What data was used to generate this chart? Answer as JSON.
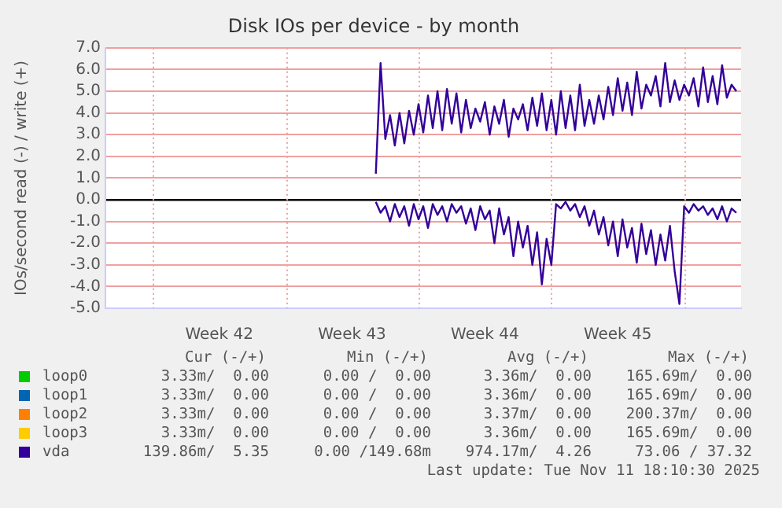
{
  "chart_data": {
    "type": "line",
    "title": "Disk IOs per device - by month",
    "ylabel": "IOs/second read (-) / write (+)",
    "categories": [
      null,
      null,
      null,
      null,
      null,
      null,
      null,
      null,
      null,
      null,
      null,
      null,
      null,
      null,
      null,
      null,
      null,
      null,
      null,
      null,
      null,
      null,
      null,
      null,
      "Week 42",
      null,
      null,
      null,
      null,
      null,
      null,
      null,
      null,
      null,
      null,
      null,
      null,
      null,
      null,
      null,
      null,
      null,
      null,
      null,
      null,
      null,
      null,
      null,
      null,
      null,
      null,
      null,
      "Week 43",
      null,
      null,
      null,
      null,
      null,
      null,
      null,
      null,
      null,
      null,
      null,
      null,
      null,
      null,
      null,
      null,
      null,
      null,
      null,
      null,
      null,
      null,
      null,
      null,
      null,
      null,
      null,
      "Week 44",
      null,
      null,
      null,
      null,
      null,
      null,
      null,
      null,
      null,
      null,
      null,
      null,
      null,
      null,
      null,
      null,
      null,
      null,
      null,
      null,
      null,
      null,
      null,
      null,
      null,
      null,
      null,
      "Week 45",
      null,
      null,
      null,
      null,
      null,
      null,
      null,
      null,
      null,
      null,
      null,
      null,
      null,
      null,
      null,
      null,
      null,
      null,
      null,
      null,
      null,
      null,
      null,
      null,
      null,
      null
    ],
    "ylim": [
      -5,
      7
    ],
    "yticks": [
      {
        "value": -5,
        "label": "-5.0"
      },
      {
        "value": -4,
        "label": "-4.0"
      },
      {
        "value": -3,
        "label": "-3.0"
      },
      {
        "value": -2,
        "label": "-2.0"
      },
      {
        "value": -1,
        "label": "-1.0"
      },
      {
        "value": 0,
        "label": "0.0"
      },
      {
        "value": 1,
        "label": "1.0"
      },
      {
        "value": 2,
        "label": "2.0"
      },
      {
        "value": 3,
        "label": "3.0"
      },
      {
        "value": 4,
        "label": "4.0"
      },
      {
        "value": 5,
        "label": "5.0"
      },
      {
        "value": 6,
        "label": "6.0"
      },
      {
        "value": 7,
        "label": "7.0"
      }
    ],
    "series": [
      {
        "name": "loop0",
        "color": "#00cc00",
        "values": [
          null,
          null,
          null,
          null,
          null,
          null,
          null,
          null,
          null,
          null,
          null,
          null,
          null,
          null,
          null,
          null,
          null,
          null,
          null,
          null,
          null,
          null,
          null,
          null,
          null,
          null,
          null,
          null,
          null,
          null,
          null,
          null,
          null,
          null,
          null,
          null,
          null,
          null,
          null,
          null,
          null,
          null,
          null,
          null,
          null,
          null,
          null,
          null,
          null,
          null,
          null,
          null,
          null,
          null,
          null,
          null,
          null,
          null,
          null,
          null,
          null,
          null,
          null,
          null,
          null,
          null,
          null,
          null,
          null,
          null,
          null,
          null,
          null,
          null,
          null,
          null,
          null,
          null,
          null,
          null,
          null,
          null,
          null,
          null,
          null,
          null,
          null,
          null,
          null,
          null,
          null,
          null,
          null,
          null,
          null,
          null,
          null,
          null,
          null,
          null,
          null,
          null,
          null,
          null,
          null,
          null,
          null,
          null,
          null,
          null,
          null,
          null,
          null,
          null,
          null,
          null,
          null,
          null,
          null,
          null,
          null,
          null,
          null,
          null,
          null,
          null,
          null,
          null,
          null,
          null,
          null,
          null,
          null,
          null,
          null
        ]
      },
      {
        "name": "loop1",
        "color": "#0066b3",
        "values": [
          null,
          null,
          null,
          null,
          null,
          null,
          null,
          null,
          null,
          null,
          null,
          null,
          null,
          null,
          null,
          null,
          null,
          null,
          null,
          null,
          null,
          null,
          null,
          null,
          null,
          null,
          null,
          null,
          null,
          null,
          null,
          null,
          null,
          null,
          null,
          null,
          null,
          null,
          null,
          null,
          null,
          null,
          null,
          null,
          null,
          null,
          null,
          null,
          null,
          null,
          null,
          null,
          null,
          null,
          null,
          null,
          null,
          null,
          null,
          null,
          null,
          null,
          null,
          null,
          null,
          null,
          null,
          null,
          null,
          null,
          null,
          null,
          null,
          null,
          null,
          null,
          null,
          null,
          null,
          null,
          null,
          null,
          null,
          null,
          null,
          null,
          null,
          null,
          null,
          null,
          null,
          null,
          null,
          null,
          null,
          null,
          null,
          null,
          null,
          null,
          null,
          null,
          null,
          null,
          null,
          null,
          null,
          null,
          null,
          null,
          null,
          null,
          null,
          null,
          null,
          null,
          null,
          null,
          null,
          null,
          null,
          null,
          null,
          null,
          null,
          null,
          null,
          null,
          null,
          null,
          null,
          null,
          null,
          null,
          null
        ]
      },
      {
        "name": "loop2",
        "color": "#ff8000",
        "values": [
          null,
          null,
          null,
          null,
          null,
          null,
          null,
          null,
          null,
          null,
          null,
          null,
          null,
          null,
          null,
          null,
          null,
          null,
          null,
          null,
          null,
          null,
          null,
          null,
          null,
          null,
          null,
          null,
          null,
          null,
          null,
          null,
          null,
          null,
          null,
          null,
          null,
          null,
          null,
          null,
          null,
          null,
          null,
          null,
          null,
          null,
          null,
          null,
          null,
          null,
          null,
          null,
          null,
          null,
          null,
          null,
          null,
          null,
          null,
          null,
          null,
          null,
          null,
          null,
          null,
          null,
          null,
          null,
          null,
          null,
          null,
          null,
          null,
          null,
          null,
          null,
          null,
          null,
          null,
          null,
          null,
          null,
          null,
          null,
          null,
          null,
          null,
          null,
          null,
          null,
          null,
          null,
          null,
          null,
          null,
          null,
          null,
          null,
          null,
          null,
          null,
          null,
          null,
          null,
          null,
          null,
          null,
          null,
          null,
          null,
          null,
          null,
          null,
          null,
          null,
          null,
          null,
          null,
          null,
          null,
          null,
          null,
          null,
          null,
          null,
          null,
          null,
          null,
          null,
          null,
          null,
          null,
          null,
          null,
          null
        ]
      },
      {
        "name": "loop3",
        "color": "#ffcc00",
        "values": [
          null,
          null,
          null,
          null,
          null,
          null,
          null,
          null,
          null,
          null,
          null,
          null,
          null,
          null,
          null,
          null,
          null,
          null,
          null,
          null,
          null,
          null,
          null,
          null,
          null,
          null,
          null,
          null,
          null,
          null,
          null,
          null,
          null,
          null,
          null,
          null,
          null,
          null,
          null,
          null,
          null,
          null,
          null,
          null,
          null,
          null,
          null,
          null,
          null,
          null,
          null,
          null,
          null,
          null,
          null,
          null,
          null,
          null,
          null,
          null,
          null,
          null,
          null,
          null,
          null,
          null,
          null,
          null,
          null,
          null,
          null,
          null,
          null,
          null,
          null,
          null,
          null,
          null,
          null,
          null,
          null,
          null,
          null,
          null,
          null,
          null,
          null,
          null,
          null,
          null,
          null,
          null,
          null,
          null,
          null,
          null,
          null,
          null,
          null,
          null,
          null,
          null,
          null,
          null,
          null,
          null,
          null,
          null,
          null,
          null,
          null,
          null,
          null,
          null,
          null,
          null,
          null,
          null,
          null,
          null,
          null,
          null,
          null,
          null,
          null,
          null,
          null,
          null,
          null,
          null,
          null,
          null,
          null,
          null,
          null
        ]
      },
      {
        "name": "vda",
        "color": "#330099",
        "values": [
          null,
          null,
          null,
          null,
          null,
          null,
          null,
          null,
          null,
          null,
          null,
          null,
          null,
          null,
          null,
          null,
          null,
          null,
          null,
          null,
          null,
          null,
          null,
          null,
          null,
          null,
          null,
          null,
          null,
          null,
          null,
          null,
          null,
          null,
          null,
          null,
          null,
          null,
          null,
          null,
          null,
          null,
          null,
          null,
          null,
          null,
          null,
          null,
          null,
          null,
          null,
          null,
          null,
          null,
          null,
          null,
          null,
          1.2,
          6.3,
          2.8,
          3.9,
          2.5,
          4.0,
          2.6,
          4.1,
          3.0,
          4.4,
          3.1,
          4.8,
          3.3,
          5.0,
          3.2,
          5.1,
          3.5,
          4.9,
          3.1,
          4.6,
          3.3,
          4.2,
          3.6,
          4.5,
          3.0,
          4.3,
          3.5,
          4.6,
          2.9,
          4.2,
          3.7,
          4.4,
          3.2,
          4.7,
          3.4,
          4.9,
          3.2,
          4.6,
          3.0,
          5.0,
          3.3,
          4.8,
          3.2,
          5.3,
          3.4,
          4.6,
          3.5,
          4.8,
          3.7,
          5.2,
          3.9,
          5.6,
          4.1,
          5.4,
          3.9,
          5.9,
          4.2,
          5.3,
          4.8,
          5.7,
          4.3,
          6.3,
          4.5,
          5.5,
          4.6,
          5.3,
          4.8,
          5.6,
          4.3,
          6.1,
          4.5,
          5.7,
          4.4,
          6.2,
          4.7,
          5.3,
          5.0,
          null
        ]
      },
      {
        "color": "#330099",
        "values": [
          null,
          null,
          null,
          null,
          null,
          null,
          null,
          null,
          null,
          null,
          null,
          null,
          null,
          null,
          null,
          null,
          null,
          null,
          null,
          null,
          null,
          null,
          null,
          null,
          null,
          null,
          null,
          null,
          null,
          null,
          null,
          null,
          null,
          null,
          null,
          null,
          null,
          null,
          null,
          null,
          null,
          null,
          null,
          null,
          null,
          null,
          null,
          null,
          null,
          null,
          null,
          null,
          null,
          null,
          null,
          null,
          null,
          -0.1,
          -0.6,
          -0.3,
          -1.0,
          -0.2,
          -0.8,
          -0.3,
          -1.2,
          -0.2,
          -0.9,
          -0.3,
          -1.3,
          -0.2,
          -0.7,
          -0.3,
          -1.0,
          -0.2,
          -0.6,
          -0.3,
          -1.1,
          -0.4,
          -1.4,
          -0.3,
          -0.9,
          -0.5,
          -2.0,
          -0.4,
          -1.6,
          -0.8,
          -2.6,
          -1.0,
          -2.2,
          -1.2,
          -3.0,
          -1.5,
          -3.9,
          -1.8,
          -3.0,
          -0.2,
          -0.4,
          -0.1,
          -0.5,
          -0.2,
          -0.8,
          -0.3,
          -1.2,
          -0.5,
          -1.6,
          -0.8,
          -2.1,
          -1.0,
          -2.6,
          -0.9,
          -2.2,
          -1.3,
          -2.9,
          -1.1,
          -2.5,
          -1.4,
          -3.0,
          -1.6,
          -2.8,
          -1.2,
          -3.3,
          -4.8,
          -0.3,
          -0.6,
          -0.2,
          -0.5,
          -0.3,
          -0.7,
          -0.4,
          -0.9,
          -0.3,
          -1.0,
          -0.4,
          -0.6,
          null
        ]
      }
    ],
    "grid": true,
    "legend": "bottom",
    "marker": "none",
    "line_style": "solid",
    "annotations": [
      "Cur (-/+)",
      "Min (-/+)",
      "Avg (-/+)",
      "Max (-/+)",
      "3.33m/  0.00",
      "0.00 /  0.00",
      "3.36m/  0.00",
      "165.69m/  0.00",
      "3.33m/  0.00",
      "0.00 /  0.00",
      "3.36m/  0.00",
      "165.69m/  0.00",
      "3.33m/  0.00",
      "0.00 /  0.00",
      "3.37m/  0.00",
      "200.37m/  0.00",
      "3.33m/  0.00",
      "0.00 /  0.00",
      "3.36m/  0.00",
      "165.69m/  0.00",
      "139.86m/  5.35",
      "0.00 /149.68m",
      "974.17m/  4.26",
      "73.06 / 37.32",
      "Last update: Tue Nov 11 18:10:30 2025"
    ]
  }
}
